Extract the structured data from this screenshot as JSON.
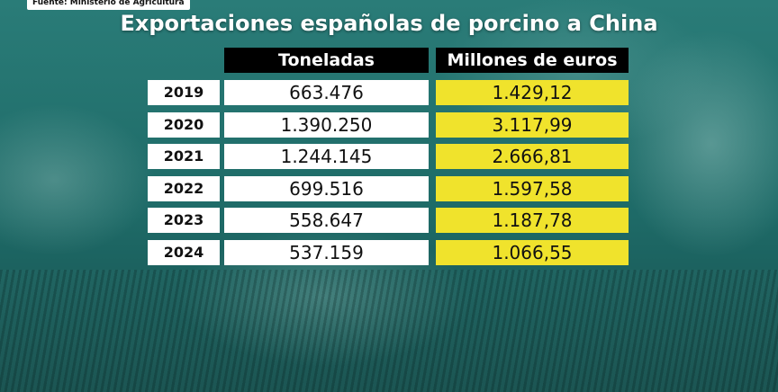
{
  "source": "Fuente: Ministerio de Agricultura",
  "colors": {
    "accent": "#f0e32c",
    "background": "#1f6b68",
    "header": "#000000"
  },
  "chart_data": {
    "type": "table",
    "title": "Exportaciones españolas de porcino a China",
    "columns": [
      "Toneladas",
      "Millones de euros"
    ],
    "rows": [
      {
        "year": "2019",
        "toneladas": "663.476",
        "euros": "1.429,12"
      },
      {
        "year": "2020",
        "toneladas": "1.390.250",
        "euros": "3.117,99"
      },
      {
        "year": "2021",
        "toneladas": "1.244.145",
        "euros": "2.666,81"
      },
      {
        "year": "2022",
        "toneladas": "699.516",
        "euros": "1.597,58"
      },
      {
        "year": "2023",
        "toneladas": "558.647",
        "euros": "1.187,78"
      },
      {
        "year": "2024",
        "toneladas": "537.159",
        "euros": "1.066,55"
      }
    ]
  }
}
